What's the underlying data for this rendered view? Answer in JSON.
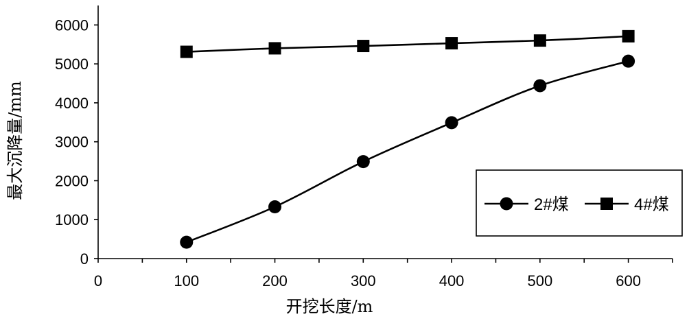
{
  "chart_data": {
    "type": "line",
    "title": "",
    "xlabel": "开挖长度/m",
    "ylabel": "最大沉降量/mm",
    "xlim": [
      0,
      650
    ],
    "ylim": [
      0,
      6500
    ],
    "x_ticks": [
      0,
      100,
      200,
      300,
      400,
      500,
      600
    ],
    "y_ticks": [
      0,
      1000,
      2000,
      3000,
      4000,
      5000,
      6000
    ],
    "x_tick_labels": [
      "0",
      "100",
      "200",
      "300",
      "400",
      "500",
      "600"
    ],
    "y_tick_labels": [
      "0",
      "1000",
      "2000",
      "3000",
      "4000",
      "5000",
      "6000"
    ],
    "grid": false,
    "legend_position": "lower-right",
    "x": [
      100,
      200,
      300,
      400,
      500,
      600
    ],
    "series": [
      {
        "name": "2#煤",
        "marker": "circle",
        "color": "#000000",
        "values": [
          420,
          1330,
          2490,
          3490,
          4440,
          5070
        ]
      },
      {
        "name": "4#煤",
        "marker": "square",
        "color": "#000000",
        "values": [
          5310,
          5400,
          5460,
          5530,
          5600,
          5710
        ]
      }
    ]
  }
}
